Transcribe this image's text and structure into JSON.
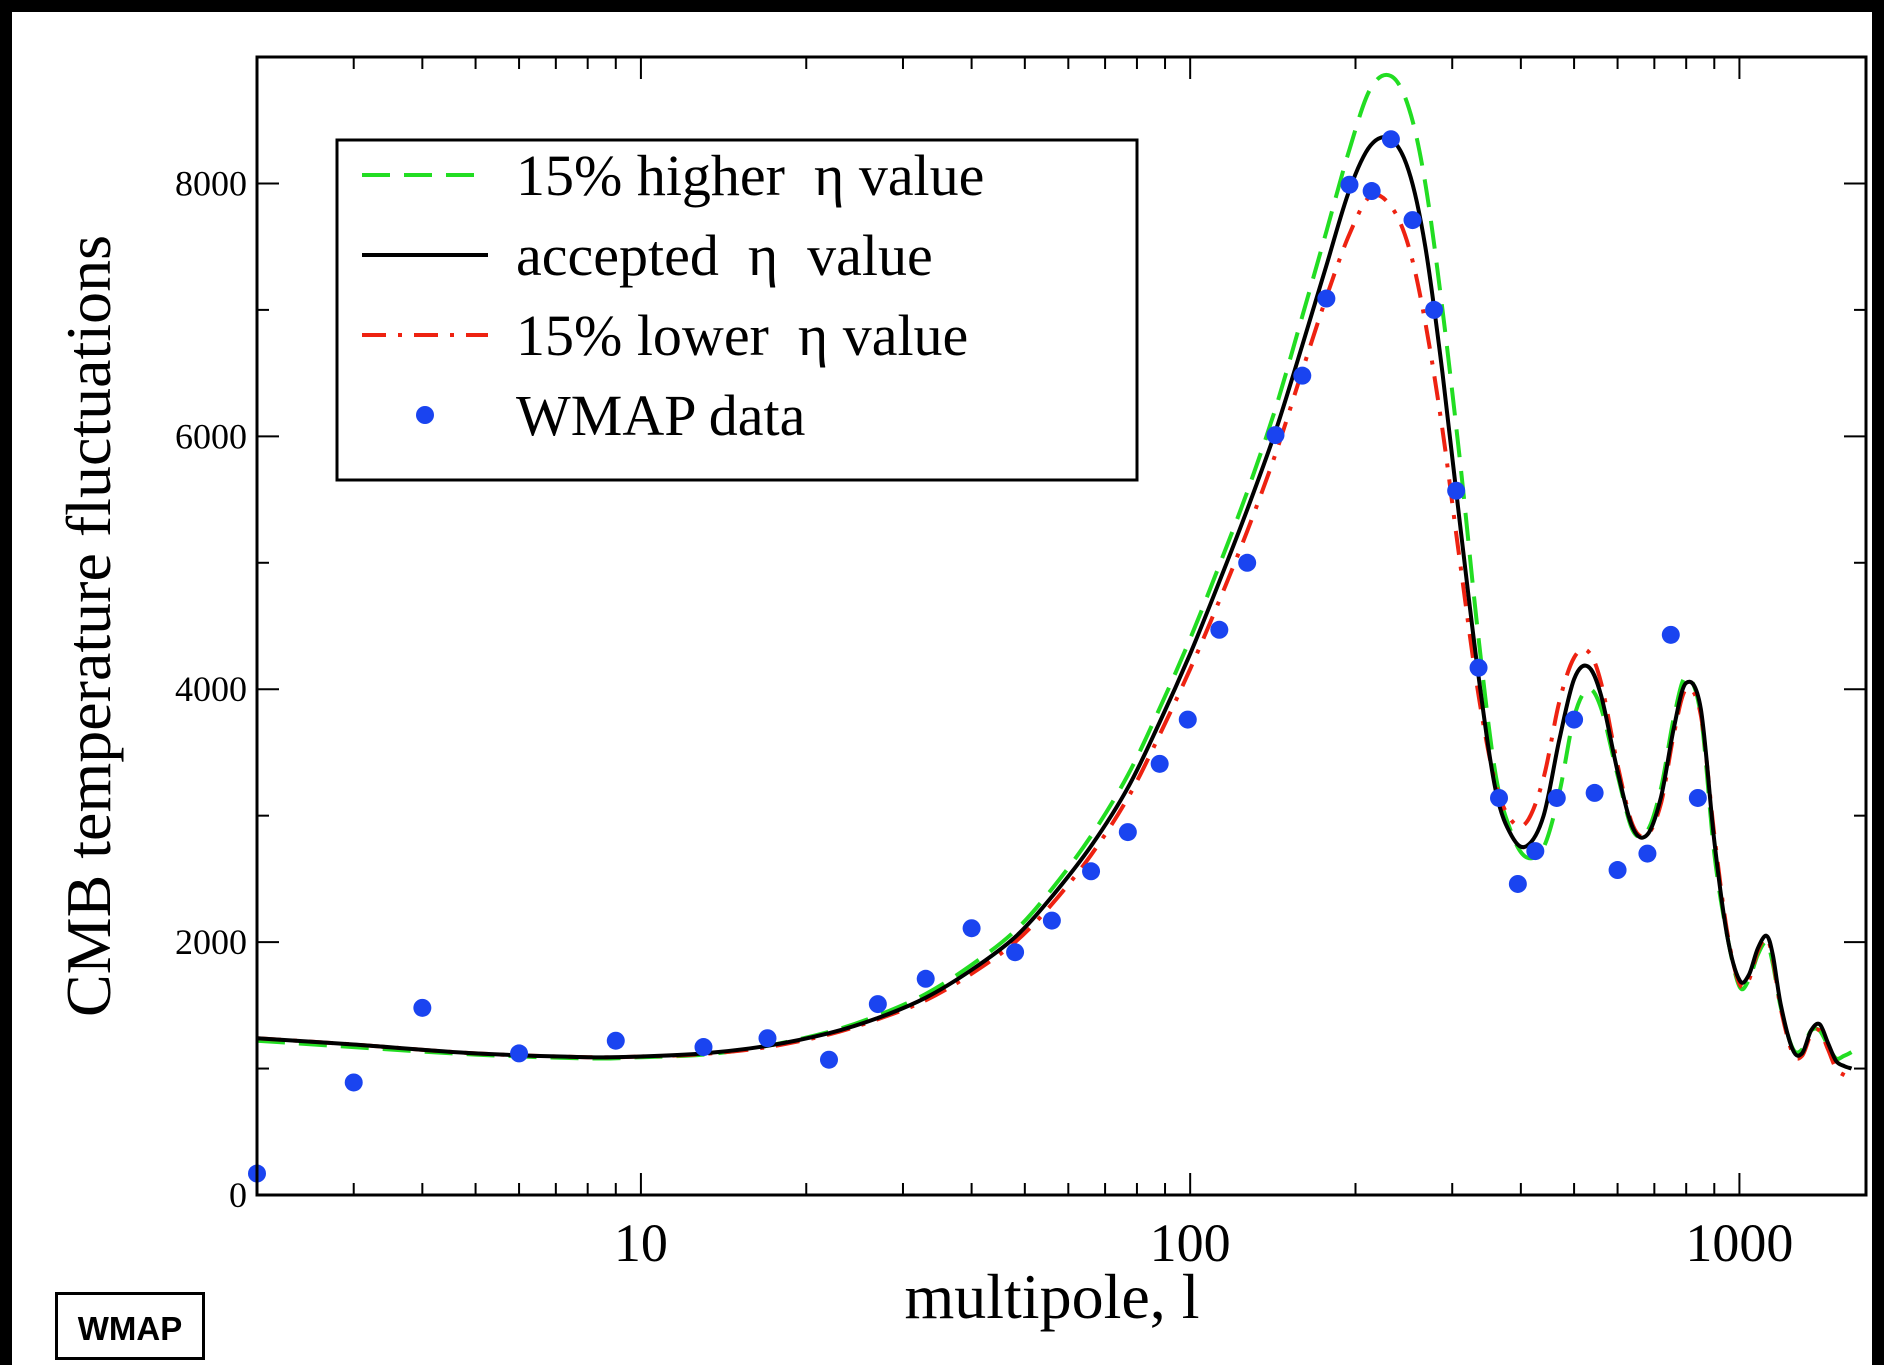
{
  "badge": {
    "text": "WMAP"
  },
  "chart_data": {
    "type": "line",
    "xlabel": "multipole, l",
    "ylabel": "CMB temperature fluctuations",
    "xscale": "log",
    "xlim": [
      2,
      1700
    ],
    "ylim": [
      0,
      9000
    ],
    "x_ticks": [
      {
        "value": 10,
        "label": "10"
      },
      {
        "value": 100,
        "label": "100"
      },
      {
        "value": 1000,
        "label": "1000"
      }
    ],
    "y_ticks": [
      {
        "value": 0,
        "label": "0"
      },
      {
        "value": 2000,
        "label": "2000"
      },
      {
        "value": 4000,
        "label": "4000"
      },
      {
        "value": 6000,
        "label": "6000"
      },
      {
        "value": 8000,
        "label": "8000"
      }
    ],
    "legend": {
      "position": "top-left"
    },
    "colors": {
      "higher": "#22dd22",
      "accepted": "#000000",
      "lower": "#ee2211",
      "data": "#1a44f0"
    },
    "series": [
      {
        "name": "15% higher  η value",
        "style": "dashed",
        "color_key": "higher",
        "x": [
          2,
          3,
          5,
          8,
          10,
          13,
          17,
          22,
          27,
          33,
          40,
          48,
          56,
          66,
          77,
          88,
          100,
          113,
          127,
          143,
          160,
          177,
          195,
          213,
          232,
          250,
          268,
          288,
          310,
          335,
          360,
          385,
          410,
          440,
          470,
          500,
          530,
          560,
          600,
          640,
          680,
          720,
          760,
          800,
          850,
          900,
          950,
          1000,
          1040,
          1080,
          1120,
          1150,
          1190,
          1250,
          1300,
          1350,
          1400,
          1450,
          1500,
          1550,
          1600
        ],
        "y": [
          1220,
          1170,
          1110,
          1080,
          1090,
          1110,
          1180,
          1290,
          1420,
          1590,
          1820,
          2090,
          2420,
          2840,
          3320,
          3850,
          4400,
          4980,
          5560,
          6220,
          6950,
          7620,
          8270,
          8750,
          8850,
          8600,
          8000,
          7000,
          5800,
          4400,
          3320,
          2860,
          2670,
          2750,
          3180,
          3780,
          4000,
          3850,
          3320,
          2880,
          2880,
          3220,
          3780,
          4100,
          3800,
          2700,
          2050,
          1650,
          1700,
          1900,
          2000,
          1830,
          1480,
          1160,
          1150,
          1300,
          1300,
          1180,
          1080,
          1100,
          1130
        ]
      },
      {
        "name": "accepted  η  value",
        "style": "solid",
        "color_key": "accepted",
        "x": [
          2,
          3,
          5,
          8,
          10,
          13,
          17,
          22,
          27,
          33,
          40,
          48,
          56,
          66,
          77,
          88,
          100,
          113,
          127,
          143,
          160,
          177,
          195,
          213,
          232,
          250,
          268,
          288,
          310,
          335,
          360,
          385,
          410,
          440,
          470,
          500,
          530,
          560,
          600,
          640,
          680,
          720,
          760,
          800,
          850,
          900,
          950,
          1000,
          1040,
          1080,
          1120,
          1150,
          1190,
          1250,
          1300,
          1350,
          1400,
          1450,
          1500,
          1550,
          1600
        ],
        "y": [
          1240,
          1190,
          1120,
          1090,
          1095,
          1120,
          1180,
          1280,
          1400,
          1560,
          1780,
          2040,
          2360,
          2760,
          3220,
          3740,
          4280,
          4850,
          5420,
          6040,
          6720,
          7350,
          7950,
          8300,
          8350,
          8100,
          7500,
          6500,
          5300,
          4100,
          3200,
          2840,
          2760,
          3000,
          3600,
          4080,
          4180,
          3950,
          3350,
          2900,
          2850,
          3150,
          3700,
          4050,
          3850,
          2800,
          2050,
          1700,
          1740,
          1950,
          2050,
          1900,
          1500,
          1150,
          1120,
          1300,
          1350,
          1200,
          1060,
          1020,
          1000
        ]
      },
      {
        "name": "15% lower  η value",
        "style": "dashdot",
        "color_key": "lower",
        "x": [
          2,
          3,
          5,
          8,
          10,
          13,
          17,
          22,
          27,
          33,
          40,
          48,
          56,
          66,
          77,
          88,
          100,
          113,
          127,
          143,
          160,
          177,
          195,
          213,
          232,
          250,
          268,
          288,
          310,
          335,
          360,
          385,
          410,
          440,
          470,
          500,
          530,
          560,
          600,
          640,
          680,
          720,
          760,
          800,
          850,
          900,
          950,
          1000,
          1040,
          1080,
          1120,
          1150,
          1190,
          1250,
          1300,
          1350,
          1400,
          1450,
          1500,
          1550,
          1600
        ],
        "y": [
          1240,
          1190,
          1120,
          1090,
          1095,
          1115,
          1170,
          1270,
          1390,
          1540,
          1750,
          2000,
          2300,
          2690,
          3140,
          3640,
          4160,
          4700,
          5250,
          5860,
          6520,
          7100,
          7600,
          7900,
          7820,
          7500,
          6900,
          6050,
          5000,
          3950,
          3250,
          2960,
          2950,
          3300,
          3900,
          4250,
          4300,
          4050,
          3400,
          2920,
          2850,
          3100,
          3650,
          4000,
          3800,
          2850,
          2080,
          1670,
          1700,
          1930,
          2030,
          1870,
          1470,
          1120,
          1100,
          1270,
          1300,
          1150,
          1000,
          950,
          930
        ]
      },
      {
        "name": "WMAP data",
        "style": "points",
        "color_key": "data",
        "x": [
          2,
          3,
          4,
          6,
          9,
          13,
          17,
          22,
          27,
          33,
          40,
          48,
          56,
          66,
          77,
          88,
          99,
          113,
          127,
          143,
          160,
          177,
          195,
          214,
          232,
          254,
          278,
          305,
          335,
          365,
          395,
          425,
          465,
          500,
          545,
          600,
          680,
          750,
          840
        ],
        "y": [
          170,
          890,
          1480,
          1120,
          1220,
          1170,
          1240,
          1070,
          1510,
          1710,
          2110,
          1920,
          2170,
          2560,
          2870,
          3410,
          3760,
          4470,
          5000,
          6010,
          6480,
          7090,
          7990,
          7940,
          8350,
          7710,
          7000,
          5570,
          4170,
          3140,
          2460,
          2720,
          3140,
          3760,
          3180,
          2570,
          2700,
          4430,
          3140
        ]
      }
    ]
  }
}
